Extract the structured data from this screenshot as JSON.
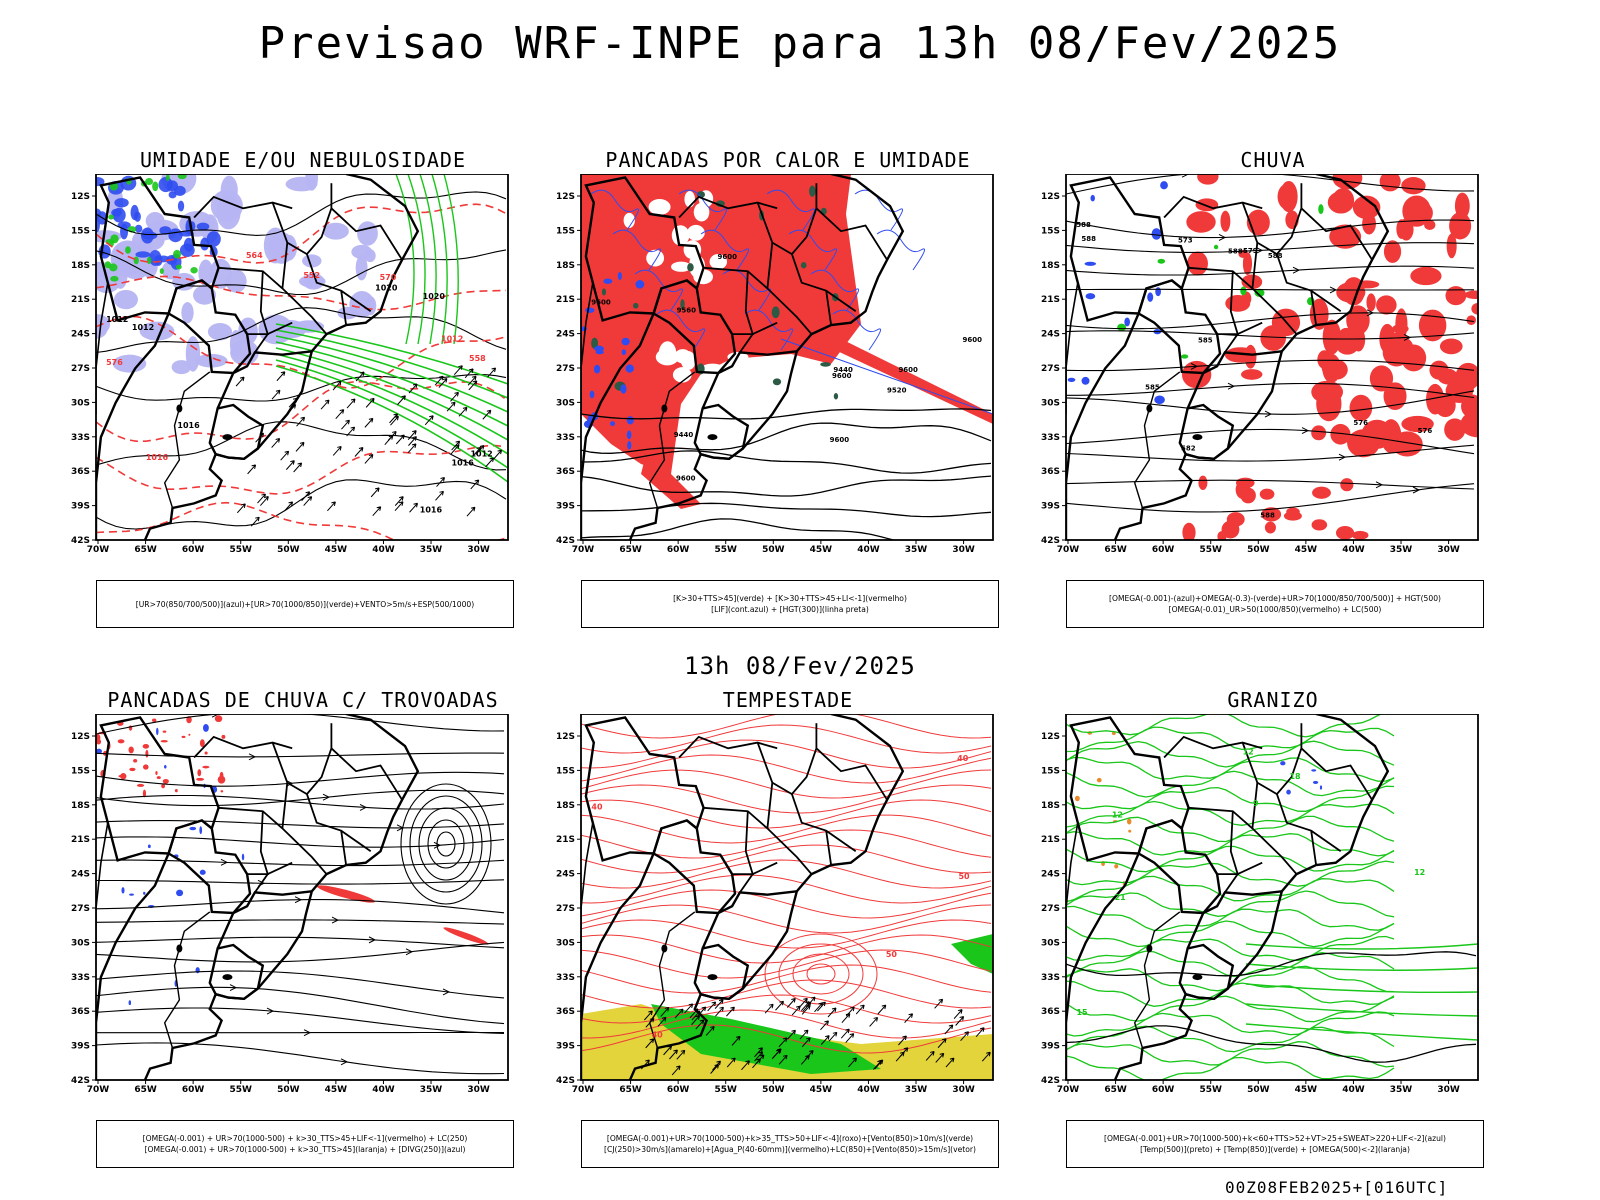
{
  "header": {
    "title": "Previsao WRF-INPE  para 13h 08/Fev/2025",
    "mid_title": "13h 08/Fev/2025",
    "footer": "00Z08FEB2025+[016UTC]"
  },
  "axes": {
    "lat_labels": [
      "12S",
      "15S",
      "18S",
      "21S",
      "24S",
      "27S",
      "30S",
      "33S",
      "36S",
      "39S",
      "42S"
    ],
    "lon_labels": [
      "70W",
      "65W",
      "60W",
      "55W",
      "50W",
      "45W",
      "40W",
      "35W",
      "30W"
    ]
  },
  "colors": {
    "red": "#f03a3a",
    "blue": "#2f4cf0",
    "green": "#19c619",
    "lavender": "#b6b4f2",
    "yellow": "#e2d43a",
    "dark_green": "#2c5a44",
    "orange": "#e88a2a",
    "black": "#000000"
  },
  "panels": [
    {
      "id": "umidade",
      "title": "UMIDADE E/OU NEBULOSIDADE",
      "legend": [
        "[UR>70(850/700/500)](azul)+[UR>70(1000/850)](verde)+VENTO>5m/s+ESP(500/1000)"
      ],
      "labels": [
        "1012",
        "1012",
        "1016",
        "1016",
        "1020",
        "1020",
        "1012",
        "1016",
        "576",
        "570",
        "564",
        "558",
        "552",
        "1016",
        "1012"
      ]
    },
    {
      "id": "pancadas-calor",
      "title": "PANCADAS POR CALOR E UMIDADE",
      "legend": [
        "[K>30+TTS>45](verde) + [K>30+TTS>45+LI<-1](vermelho)",
        "[LIF](cont.azul) + [HGT(300)](linha preta)"
      ],
      "labels": [
        "9600",
        "9600",
        "9600",
        "9600",
        "9560",
        "9600",
        "9600",
        "9520",
        "9440",
        "9440",
        "9600"
      ]
    },
    {
      "id": "chuva",
      "title": "CHUVA",
      "legend": [
        "[OMEGA(-0.001)-(azul)+OMEGA(-0.3)-(verde)+UR>70(1000/850/700/500)] + HGT(500)",
        "[OMEGA(-0.01)_UR>50(1000/850)(vermelho) + LC(500)"
      ],
      "labels": [
        "588",
        "588",
        "588",
        "585",
        "588",
        "582",
        "579",
        "576",
        "576",
        "573",
        "588",
        "585"
      ]
    },
    {
      "id": "pancadas-trovoadas",
      "title": "PANCADAS DE CHUVA C/ TROVOADAS",
      "legend": [
        "[OMEGA(-0.001) + UR>70(1000-500) + k>30_TTS>45+LIF<-1](vermelho) + LC(250)",
        "[OMEGA(-0.001) + UR>70(1000-500) + k>30_TTS>45](laranja) + [DIVG(250)](azul)"
      ],
      "labels": []
    },
    {
      "id": "tempestade",
      "title": "TEMPESTADE",
      "legend": [
        "[OMEGA(-0.001)+UR>70(1000-500)+k>35_TTS>50+LIF<-4](roxo)+[Vento(850)>10m/s](verde)",
        "[CJ(250)>30m/s](amarelo)+[Agua_P(40-60mm)](vermelho)+LC(850)+[Vento(850)>15m/s](vetor)"
      ],
      "labels": [
        "40",
        "40",
        "50",
        "40",
        "50"
      ]
    },
    {
      "id": "granizo",
      "title": "GRANIZO",
      "legend": [
        "[OMEGA(-0.001)+UR>70(1000-500)+k<60+TTS>52+VT>25+SWEAT>220+LIF<-2](azul)",
        "[Temp(500)](preto) + [Temp(850)](verde) + [OMEGA(500)<-2](laranja)"
      ],
      "labels": [
        "15",
        "12",
        "12",
        "21",
        "18",
        "12",
        "9"
      ]
    }
  ]
}
